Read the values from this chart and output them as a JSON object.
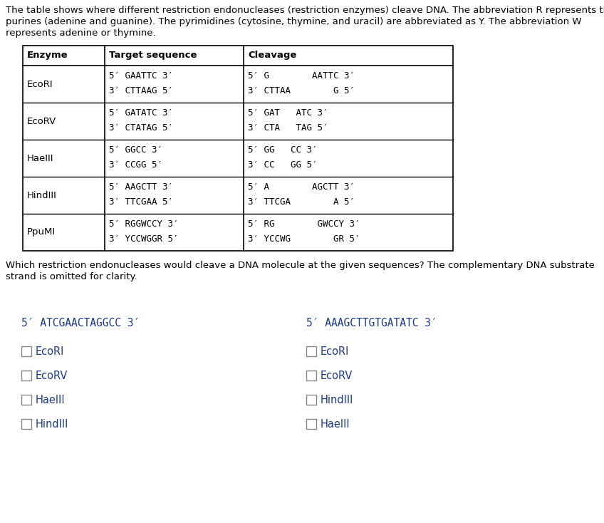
{
  "bg_color": "#ffffff",
  "intro_text": "The table shows where different restriction endonucleases (restriction enzymes) cleave DNA. The abbreviation R represents the\npurines (adenine and guanine). The pyrimidines (cytosine, thymine, and uracil) are abbreviated as Y. The abbreviation W\nrepresents adenine or thymine.",
  "table_headers": [
    "Enzyme",
    "Target sequence",
    "Cleavage"
  ],
  "table_rows": [
    {
      "enzyme": "EcoRI",
      "target_line1": "5′ GAATTC 3′",
      "target_line2": "3′ CTTAAG 5′",
      "cleavage_line1": "5′ G        AATTC 3′",
      "cleavage_line2": "3′ CTTAA        G 5′"
    },
    {
      "enzyme": "EcoRV",
      "target_line1": "5′ GATATC 3′",
      "target_line2": "3′ CTATAG 5′",
      "cleavage_line1": "5′ GAT   ATC 3′",
      "cleavage_line2": "3′ CTA   TAG 5′"
    },
    {
      "enzyme": "HaeIII",
      "target_line1": "5′ GGCC 3′",
      "target_line2": "3′ CCGG 5′",
      "cleavage_line1": "5′ GG   CC 3′",
      "cleavage_line2": "3′ CC   GG 5′"
    },
    {
      "enzyme": "HindIII",
      "target_line1": "5′ AAGCTT 3′",
      "target_line2": "3′ TTCGAA 5′",
      "cleavage_line1": "5′ A        AGCTT 3′",
      "cleavage_line2": "3′ TTCGA        A 5′"
    },
    {
      "enzyme": "PpuMI",
      "target_line1": "5′ RGGWCCY 3′",
      "target_line2": "3′ YCCWGGR 5′",
      "cleavage_line1": "5′ RG        GWCCY 3′",
      "cleavage_line2": "3′ YCCWG        GR 5′"
    }
  ],
  "question_text": "Which restriction endonucleases would cleave a DNA molecule at the given sequences? The complementary DNA substrate\nstrand is omitted for clarity.",
  "seq1_label": "5′ ATCGAACTAGGCC 3′",
  "seq2_label": "5′ AAAGCTTGTGATATC 3′",
  "seq1_options": [
    "EcoRI",
    "EcoRV",
    "HaeIII",
    "HindIII"
  ],
  "seq2_options": [
    "EcoRI",
    "EcoRV",
    "HindIII",
    "HaeIII"
  ],
  "text_color": "#000000",
  "seq_text_color": "#1a3a8c",
  "option_text_color": "#1a3a8c",
  "font_size": 9.5,
  "seq_font_size": 10.5,
  "option_font_size": 10.5
}
